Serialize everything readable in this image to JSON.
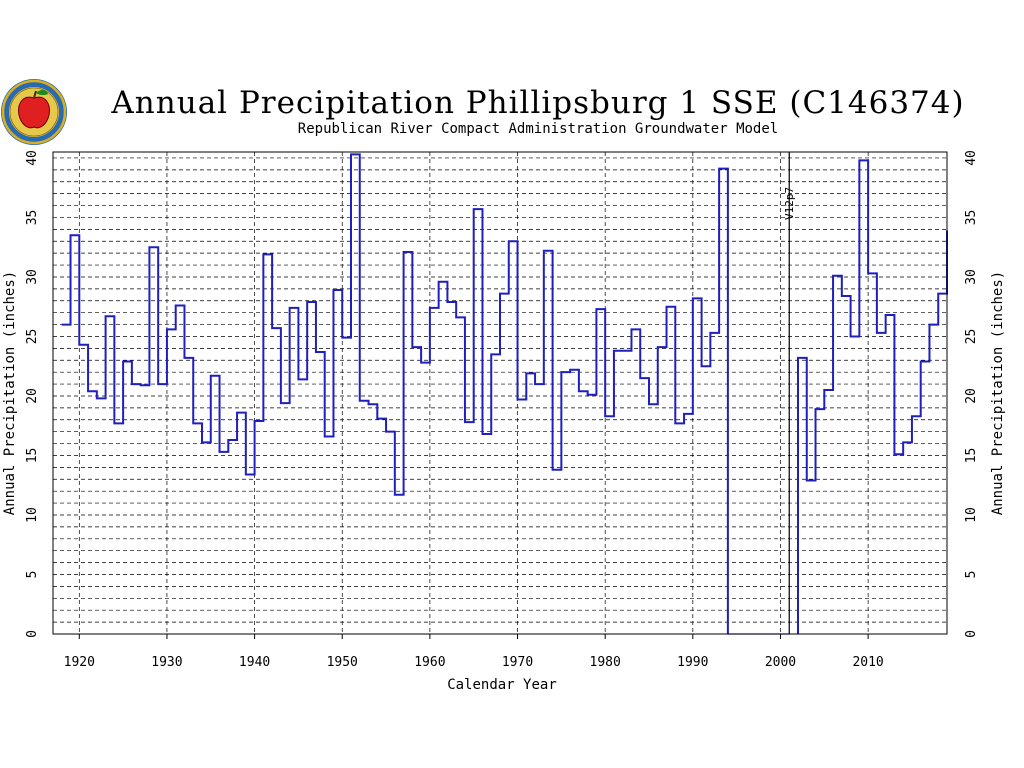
{
  "chart_data": {
    "type": "line",
    "step": true,
    "title": "Annual Precipitation Phillipsburg 1 SSE (C146374)",
    "subtitle": "Republican River Compact Administration Groundwater Model",
    "xlabel": "Calendar Year",
    "ylabel_left": "Annual Precipitation (inches)",
    "ylabel_right": "Annual Precipitation (inches)",
    "xlim": [
      1917,
      2019
    ],
    "ylim": [
      0,
      40.5
    ],
    "x_ticks": [
      "1920",
      "1930",
      "1940",
      "1950",
      "1960",
      "1970",
      "1980",
      "1990",
      "2000",
      "2010"
    ],
    "y_ticks": [
      "0",
      "5",
      "10",
      "15",
      "20",
      "25",
      "30",
      "35",
      "40"
    ],
    "grid": true,
    "line_color": "#1f1fbf",
    "missing_color": "#5050ff",
    "marker": {
      "year": 2001,
      "label": "V12p7"
    },
    "missing_range": [
      1994,
      2001
    ],
    "series": [
      {
        "years": [
          1918,
          1919,
          1920,
          1921,
          1922,
          1923,
          1924,
          1925,
          1926,
          1927,
          1928,
          1929,
          1930,
          1931,
          1932,
          1933,
          1934,
          1935,
          1936,
          1937,
          1938,
          1939,
          1940,
          1941,
          1942,
          1943,
          1944,
          1945,
          1946,
          1947,
          1948,
          1949,
          1950,
          1951,
          1952,
          1953,
          1954,
          1955,
          1956,
          1957,
          1958,
          1959,
          1960,
          1961,
          1962,
          1963,
          1964,
          1965,
          1966,
          1967,
          1968,
          1969,
          1970,
          1971,
          1972,
          1973,
          1974,
          1975,
          1976,
          1977,
          1978,
          1979,
          1980,
          1981,
          1982,
          1983,
          1984,
          1985,
          1986,
          1987,
          1988,
          1989,
          1990,
          1991,
          1992,
          1993
        ],
        "values": [
          26,
          33.5,
          24.3,
          20.4,
          19.8,
          26.7,
          17.7,
          22.9,
          21,
          20.9,
          32.5,
          21,
          25.6,
          27.6,
          23.2,
          17.7,
          16.1,
          21.7,
          15.3,
          16.3,
          18.6,
          13.4,
          17.9,
          31.9,
          25.7,
          19.4,
          27.4,
          21.4,
          27.9,
          23.7,
          16.6,
          28.9,
          24.9,
          40.3,
          19.6,
          19.3,
          18.1,
          17,
          11.7,
          32.1,
          24.1,
          22.8,
          27.4,
          29.6,
          27.9,
          26.6,
          17.8,
          35.7,
          16.8,
          23.5,
          28.6,
          33,
          19.7,
          21.9,
          21,
          32.2,
          13.8,
          22,
          22.2,
          20.4,
          20.1,
          27.3,
          18.3,
          23.8,
          23.8,
          25.6,
          21.5,
          19.3,
          24.1,
          27.5,
          17.7,
          18.5,
          28.2,
          22.5,
          25.3,
          39.1
        ]
      },
      {
        "years": [
          2002,
          2003,
          2004,
          2005,
          2006,
          2007,
          2008,
          2009,
          2010,
          2011,
          2012,
          2013,
          2014,
          2015,
          2016,
          2017,
          2018
        ],
        "values": [
          23.2,
          12.9,
          18.9,
          20.5,
          30.1,
          28.4,
          25,
          39.8,
          30.3,
          25.3,
          26.8,
          15.1,
          16.1,
          18.3,
          22.9,
          26,
          28.6
        ]
      }
    ],
    "final_value": 33.9
  }
}
